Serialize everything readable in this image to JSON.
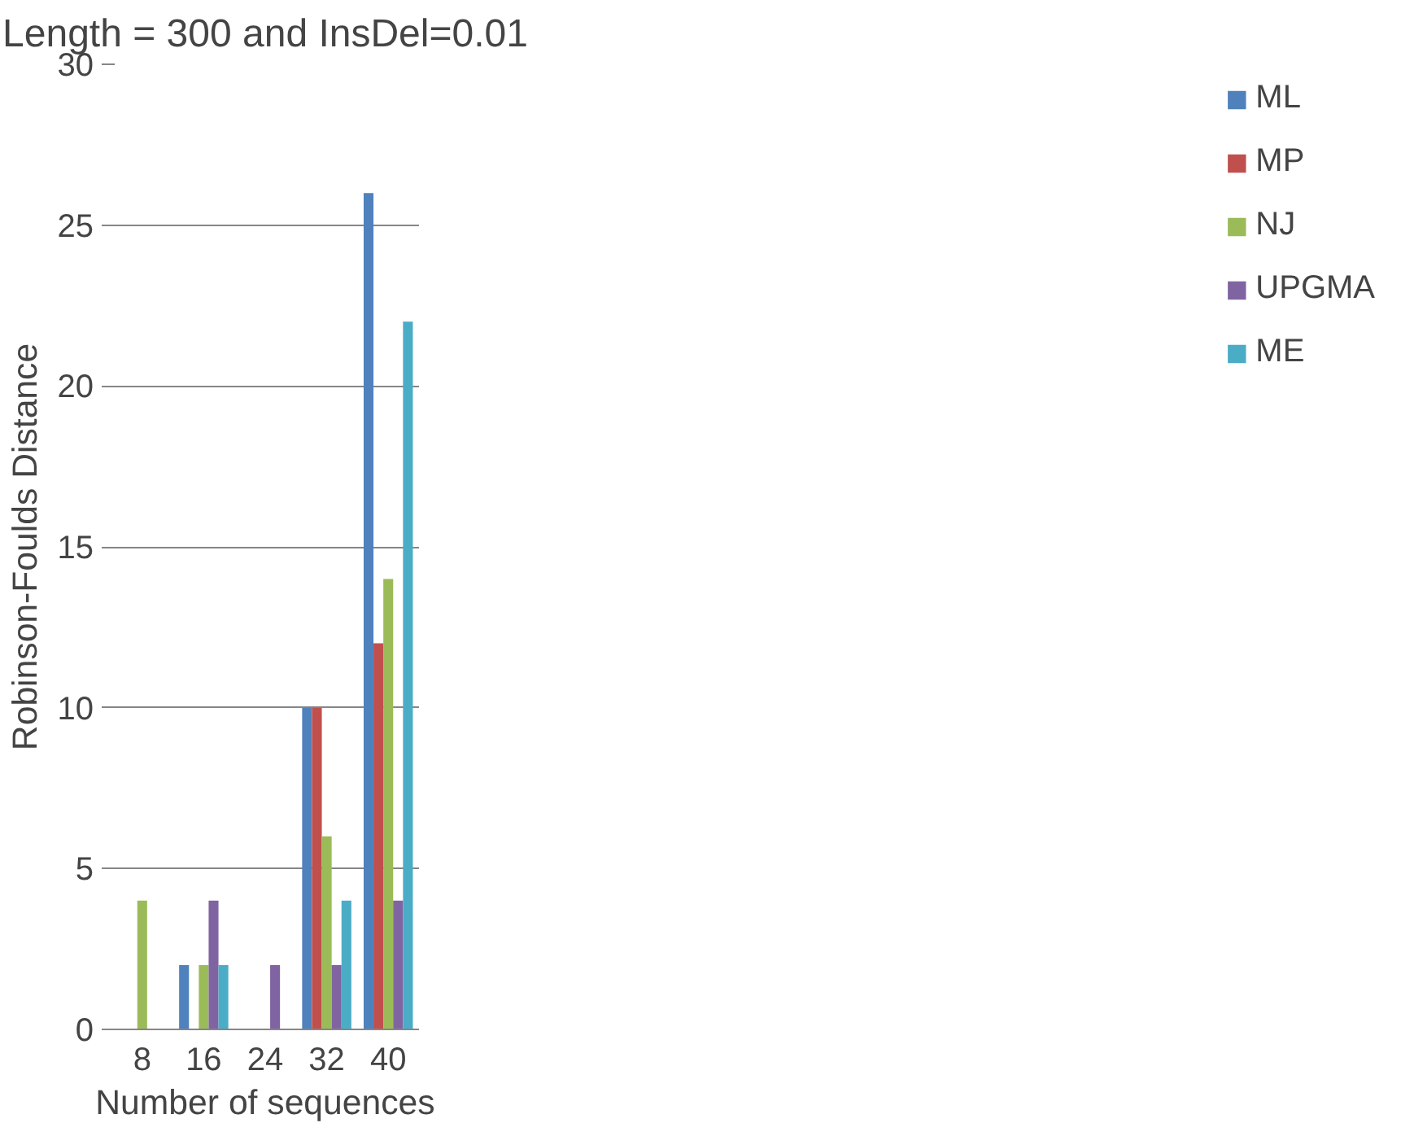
{
  "chart_data": {
    "type": "bar",
    "title": "Length = 300 and InsDel=0.01",
    "xlabel": "Number of sequences",
    "ylabel": "Robinson-Foulds Distance",
    "categories": [
      "8",
      "16",
      "24",
      "32",
      "40"
    ],
    "series": [
      {
        "name": "ML",
        "color": "#4f81bd",
        "values": [
          0,
          2,
          0,
          10,
          26
        ]
      },
      {
        "name": "MP",
        "color": "#c0504d",
        "values": [
          0,
          0,
          0,
          10,
          12
        ]
      },
      {
        "name": "NJ",
        "color": "#9bbb59",
        "values": [
          4,
          2,
          0,
          6,
          14
        ]
      },
      {
        "name": "UPGMA",
        "color": "#8064a2",
        "values": [
          0,
          4,
          2,
          2,
          4
        ]
      },
      {
        "name": "ME",
        "color": "#4bacc6",
        "values": [
          0,
          2,
          0,
          4,
          22
        ]
      }
    ],
    "ylim": [
      0,
      30
    ],
    "yticks": [
      0,
      5,
      10,
      15,
      20,
      25,
      30
    ],
    "grid": "y",
    "legend": "right"
  }
}
